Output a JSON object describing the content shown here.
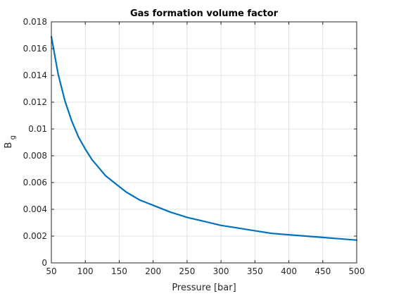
{
  "chart_data": {
    "type": "line",
    "title": "Gas formation volume factor",
    "xlabel": "Pressure [bar]",
    "ylabel": "B",
    "ylabel_subscript": "g",
    "xlim": [
      50,
      500
    ],
    "ylim": [
      0,
      0.018
    ],
    "xticks": [
      50,
      100,
      150,
      200,
      250,
      300,
      350,
      400,
      450,
      500
    ],
    "xtick_labels": [
      "50",
      "100",
      "150",
      "200",
      "250",
      "300",
      "350",
      "400",
      "450",
      "500"
    ],
    "yticks": [
      0,
      0.002,
      0.004,
      0.006,
      0.008,
      0.01,
      0.012,
      0.014,
      0.016,
      0.018
    ],
    "ytick_labels": [
      "0",
      "0.002",
      "0.004",
      "0.006",
      "0.008",
      "0.01",
      "0.012",
      "0.014",
      "0.016",
      "0.018"
    ],
    "grid": true,
    "series": [
      {
        "color": "#0072BD",
        "x": [
          50,
          60,
          70,
          80,
          90,
          100,
          110,
          120,
          130,
          140,
          150,
          160,
          170,
          180,
          190,
          200,
          225,
          250,
          275,
          300,
          325,
          350,
          375,
          400,
          425,
          450,
          475,
          500
        ],
        "y": [
          0.0169,
          0.0141,
          0.0121,
          0.0106,
          0.0094,
          0.0085,
          0.0077,
          0.0071,
          0.0065,
          0.0061,
          0.0057,
          0.0053,
          0.005,
          0.0047,
          0.0045,
          0.0043,
          0.0038,
          0.0034,
          0.0031,
          0.0028,
          0.0026,
          0.0024,
          0.0022,
          0.0021,
          0.002,
          0.0019,
          0.0018,
          0.0017
        ]
      }
    ]
  }
}
